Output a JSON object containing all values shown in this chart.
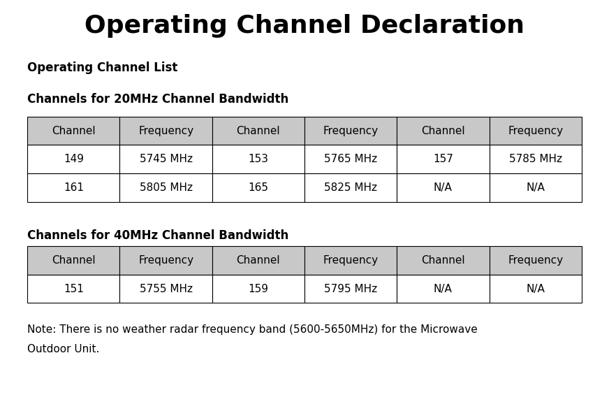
{
  "title": "Operating Channel Declaration",
  "subtitle": "Operating Channel List",
  "section1_title": "Channels for 20MHz Channel Bandwidth",
  "section2_title": "Channels for 40MHz Channel Bandwidth",
  "header_row": [
    "Channel",
    "Frequency",
    "Channel",
    "Frequency",
    "Channel",
    "Frequency"
  ],
  "table1_data": [
    [
      "149",
      "5745 MHz",
      "153",
      "5765 MHz",
      "157",
      "5785 MHz"
    ],
    [
      "161",
      "5805 MHz",
      "165",
      "5825 MHz",
      "N/A",
      "N/A"
    ]
  ],
  "table2_data": [
    [
      "151",
      "5755 MHz",
      "159",
      "5795 MHz",
      "N/A",
      "N/A"
    ]
  ],
  "note_line1": "Note: There is no weather radar frequency band (5600-5650MHz) for the Microwave",
  "note_line2": "Outdoor Unit.",
  "header_bg": "#c8c8c8",
  "cell_bg": "#ffffff",
  "border_color": "#000000",
  "title_fontsize": 26,
  "subtitle_fontsize": 12,
  "section_fontsize": 12,
  "cell_fontsize": 11,
  "note_fontsize": 11,
  "bg_color": "#ffffff",
  "fig_width": 8.72,
  "fig_height": 5.65,
  "dpi": 100
}
